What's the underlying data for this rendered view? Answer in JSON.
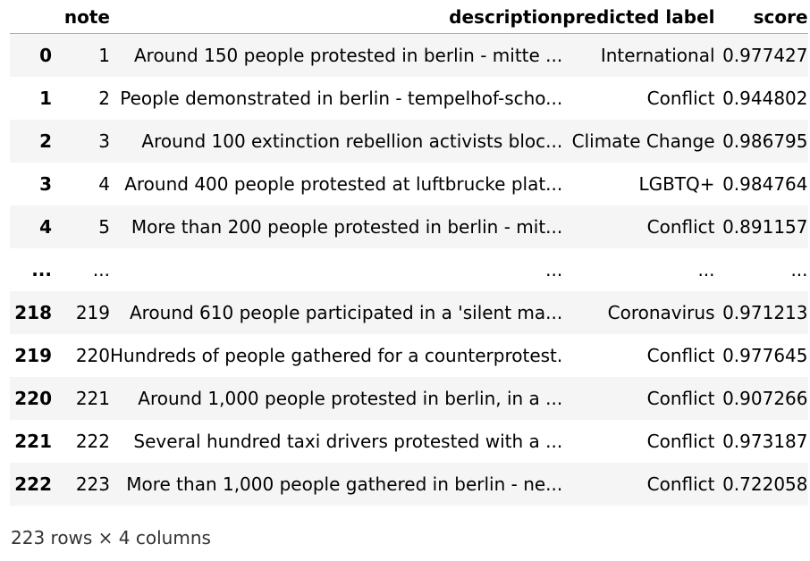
{
  "table": {
    "columns": {
      "index": "",
      "note": "note",
      "description": "description",
      "predicted_label": "predicted label",
      "score": "score"
    },
    "rows": [
      {
        "index": "0",
        "note": "1",
        "description": "Around 150 people protested in berlin - mitte ...",
        "predicted_label": "International",
        "score": "0.977427"
      },
      {
        "index": "1",
        "note": "2",
        "description": "People demonstrated in berlin - tempelhof-scho...",
        "predicted_label": "Conflict",
        "score": "0.944802"
      },
      {
        "index": "2",
        "note": "3",
        "description": "Around 100 extinction rebellion activists bloc...",
        "predicted_label": "Climate Change",
        "score": "0.986795"
      },
      {
        "index": "3",
        "note": "4",
        "description": "Around 400 people protested at luftbrucke plat...",
        "predicted_label": "LGBTQ+",
        "score": "0.984764"
      },
      {
        "index": "4",
        "note": "5",
        "description": "More than 200 people protested in berlin - mit...",
        "predicted_label": "Conflict",
        "score": "0.891157"
      },
      {
        "index": "...",
        "note": "...",
        "description": "...",
        "predicted_label": "...",
        "score": "..."
      },
      {
        "index": "218",
        "note": "219",
        "description": "Around 610 people participated in a 'silent ma...",
        "predicted_label": "Coronavirus",
        "score": "0.971213"
      },
      {
        "index": "219",
        "note": "220",
        "description": "Hundreds of people gathered for a counterprotest.",
        "predicted_label": "Conflict",
        "score": "0.977645"
      },
      {
        "index": "220",
        "note": "221",
        "description": "Around 1,000 people protested in berlin, in a ...",
        "predicted_label": "Conflict",
        "score": "0.907266"
      },
      {
        "index": "221",
        "note": "222",
        "description": "Several hundred taxi drivers protested with a ...",
        "predicted_label": "Conflict",
        "score": "0.973187"
      },
      {
        "index": "222",
        "note": "223",
        "description": "More than 1,000 people gathered in berlin - ne...",
        "predicted_label": "Conflict",
        "score": "0.722058"
      }
    ]
  },
  "footer": {
    "shape_text": "223 rows × 4 columns"
  },
  "colors": {
    "row_stripe": "#f5f5f5",
    "header_border": "#b0b0b0"
  }
}
